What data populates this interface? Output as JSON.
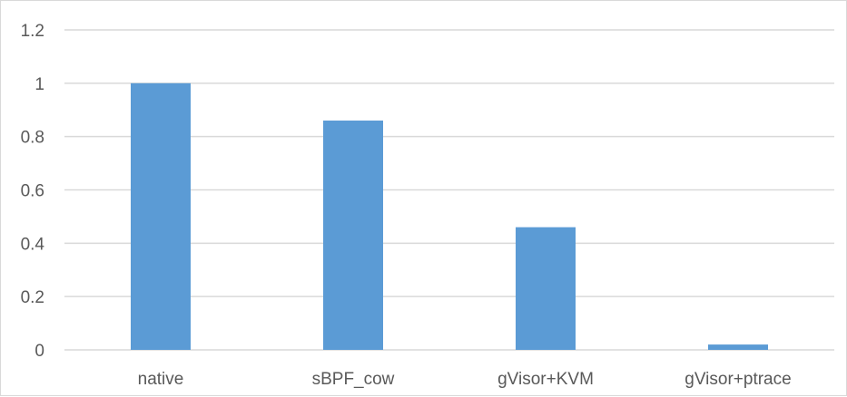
{
  "chart_data": {
    "type": "bar",
    "categories": [
      "native",
      "sBPF_cow",
      "gVisor+KVM",
      "gVisor+ptrace"
    ],
    "values": [
      1.0,
      0.86,
      0.46,
      0.02
    ],
    "yticks": [
      "0",
      "0.2",
      "0.4",
      "0.6",
      "0.8",
      "1",
      "1.2"
    ],
    "ylim": [
      0,
      1.2
    ],
    "grid": true,
    "legend": "none",
    "title": "",
    "xlabel": "",
    "ylabel": "",
    "colors": {
      "bar": "#5b9bd5",
      "grid": "#d9d9d9",
      "text": "#595959"
    }
  }
}
